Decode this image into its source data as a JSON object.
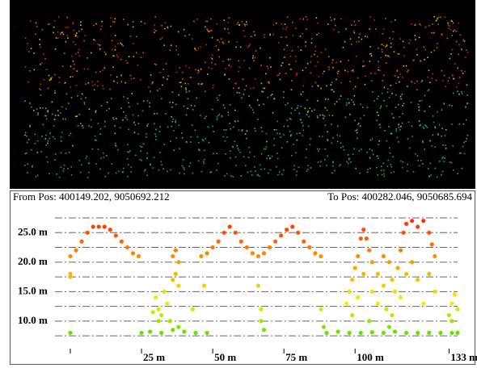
{
  "header": {
    "from_pos": "From Pos: 400149.202, 9050692.212",
    "to_pos": "To Pos: 400282.046, 9050685.694"
  },
  "chart_data": {
    "type": "scatter",
    "x": [
      0,
      2,
      4,
      6,
      8,
      10,
      12,
      14,
      16,
      18,
      20,
      22,
      24,
      0,
      0,
      0,
      30,
      31,
      32,
      33,
      34,
      31,
      29,
      35,
      36,
      37,
      38,
      37,
      36,
      38,
      25,
      28,
      32,
      36,
      38,
      40,
      44,
      48,
      43,
      47,
      46,
      48,
      50,
      52,
      54,
      56,
      58,
      60,
      62,
      64,
      66,
      68,
      70,
      72,
      74,
      76,
      78,
      80,
      82,
      84,
      86,
      88,
      66,
      67,
      68,
      67,
      90,
      94,
      98,
      102,
      106,
      110,
      114,
      118,
      122,
      126,
      130,
      134,
      136,
      88,
      89,
      97,
      98,
      99,
      100,
      101,
      102,
      103,
      104,
      105,
      106,
      108,
      110,
      112,
      113,
      114,
      115,
      116,
      117,
      118,
      120,
      122,
      124,
      126,
      127,
      128,
      99,
      101,
      103,
      106,
      108,
      110,
      111,
      113,
      116,
      118,
      120,
      122,
      124,
      126,
      128,
      105,
      112,
      133,
      134,
      135,
      134,
      136
    ],
    "values": [
      21,
      22,
      23.5,
      25,
      26,
      26,
      26,
      25.5,
      24.5,
      23.5,
      22.5,
      21.5,
      21,
      18,
      17.5,
      8,
      14,
      12,
      11,
      15,
      13,
      10,
      11.5,
      10,
      21,
      22,
      20,
      18,
      17,
      16,
      8,
      8.2,
      8,
      8.5,
      9,
      8.2,
      8,
      8,
      12,
      16,
      21,
      21.5,
      22.5,
      23.5,
      25,
      26,
      25,
      23.5,
      22.5,
      21.5,
      21,
      21.5,
      22.5,
      23.5,
      24.5,
      25.5,
      26,
      25,
      23.5,
      22.5,
      21.5,
      21,
      16,
      12,
      8.5,
      10,
      8,
      8.2,
      8,
      8,
      8.1,
      8,
      8.2,
      8,
      8,
      8,
      8,
      8,
      8,
      12,
      9,
      13,
      15,
      17,
      19,
      21,
      24,
      25.5,
      24,
      22,
      20,
      18,
      21,
      20,
      17,
      15,
      19,
      22,
      25,
      26.5,
      27,
      26,
      27,
      25,
      23,
      21,
      11,
      14,
      18,
      15,
      13,
      16,
      12,
      11,
      14,
      18,
      20,
      17,
      13,
      18,
      15,
      10,
      9,
      11,
      13,
      14.5,
      10,
      12
    ],
    "colors": [
      "#22dd00",
      "#f4f000",
      "#ff9000",
      "#ff1a00"
    ],
    "xlim": [
      0,
      136
    ],
    "ylim": [
      5.6,
      28.6
    ],
    "xticks": [
      {
        "value": 0,
        "label": null
      },
      {
        "value": 25,
        "label": "25 m"
      },
      {
        "value": 50,
        "label": "50 m"
      },
      {
        "value": 75,
        "label": "75 m"
      },
      {
        "value": 100,
        "label": "100 m"
      },
      {
        "value": 133,
        "label": "133 m"
      }
    ],
    "yticks": [
      {
        "value": 7.5,
        "label": null
      },
      {
        "value": 10,
        "label": "10.0 m"
      },
      {
        "value": 12.5,
        "label": null
      },
      {
        "value": 15,
        "label": "15.0 m"
      },
      {
        "value": 17.5,
        "label": null
      },
      {
        "value": 20,
        "label": "20.0 m"
      },
      {
        "value": 22.5,
        "label": null
      },
      {
        "value": 25,
        "label": "25.0 m"
      },
      {
        "value": 27.5,
        "label": null
      }
    ],
    "grid": true
  }
}
